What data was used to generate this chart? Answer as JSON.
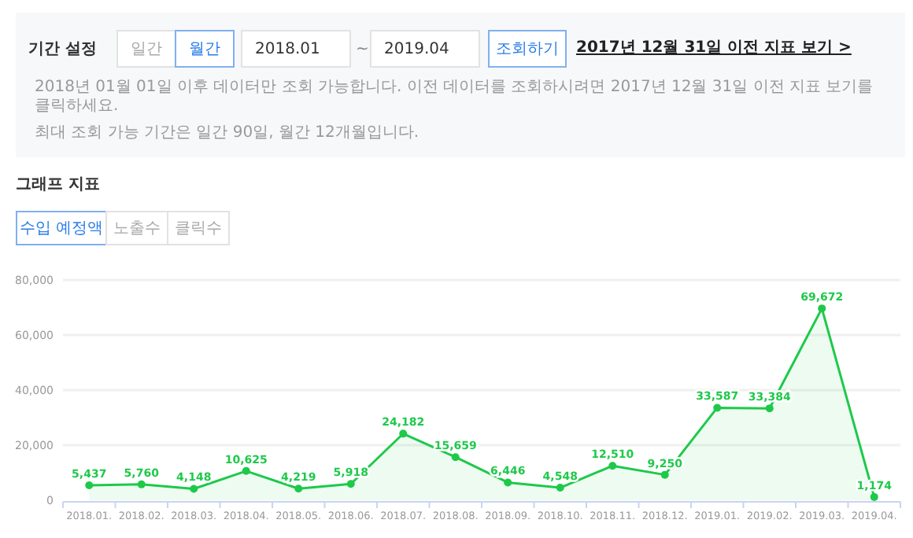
{
  "chart_data": {
    "type": "area",
    "title": "그래프 지표",
    "categories": [
      "2018.01.",
      "2018.02.",
      "2018.03.",
      "2018.04.",
      "2018.05.",
      "2018.06.",
      "2018.07.",
      "2018.08.",
      "2018.09.",
      "2018.10.",
      "2018.11.",
      "2018.12.",
      "2019.01.",
      "2019.02.",
      "2019.03.",
      "2019.04."
    ],
    "series": [
      {
        "color": "#1ec94a",
        "values": [
          5437,
          5760,
          4148,
          10625,
          4219,
          5918,
          24182,
          15659,
          6446,
          4548,
          12510,
          9250,
          33587,
          33384,
          69672,
          1174
        ],
        "value_labels": [
          "5,437",
          "5,760",
          "4,148",
          "10,625",
          "4,219",
          "5,918",
          "24,182",
          "15,659",
          "6,446",
          "4,548",
          "12,510",
          "9,250",
          "33,587",
          "33,384",
          "69,672",
          "1,174"
        ]
      }
    ],
    "ylim": [
      0,
      80000
    ],
    "yticks": [
      {
        "value": 0,
        "label": "0"
      },
      {
        "value": 20000,
        "label": "20,000"
      },
      {
        "value": 40000,
        "label": "40,000"
      },
      {
        "value": 60000,
        "label": "60,000"
      },
      {
        "value": 80000,
        "label": "80,000"
      }
    ],
    "grid": "y",
    "marker": "circle",
    "line_style": "solid",
    "annotations": [
      "기간 설정",
      "일간",
      "월간",
      "2018.01",
      "~",
      "2019.04",
      "조회하기",
      "2017년 12월 31일 이전 지표 보기 >",
      "2018년 01월 01일 이후 데이터만 조회 가능합니다. 이전 데이터를 조회하시려면 2017년 12월 31일 이전 지표 보기를 클릭하세요.",
      "최대 조회 가능 기간은 일간 90일, 월간 12개월입니다.",
      "수입 예정액",
      "노출수",
      "클릭수"
    ]
  }
}
